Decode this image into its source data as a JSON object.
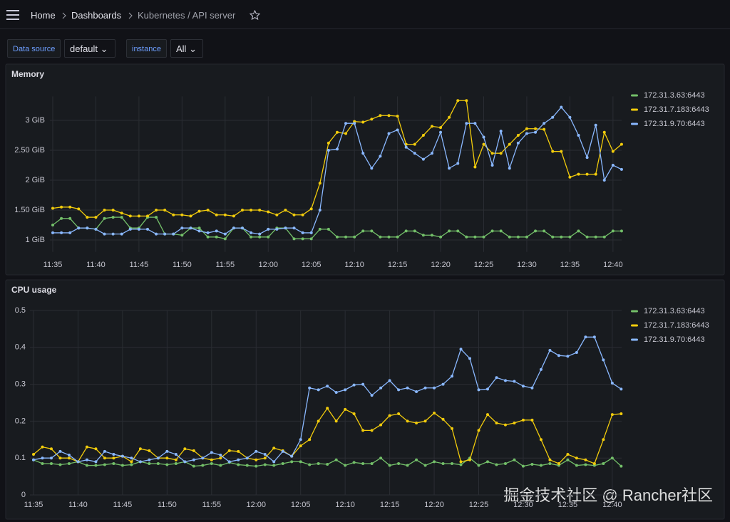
{
  "nav": [
    "Home",
    "Dashboards",
    "Kubernetes / API server"
  ],
  "variables": [
    {
      "label": "Data source",
      "value": "default"
    },
    {
      "label": "instance",
      "value": "All"
    }
  ],
  "watermark": "掘金技术社区 @ Rancher社区",
  "chart_data": [
    {
      "type": "line",
      "title": "Memory",
      "categories": [
        "11:35",
        null,
        null,
        null,
        null,
        "11:40",
        null,
        null,
        null,
        null,
        "11:45",
        null,
        null,
        null,
        null,
        "11:50",
        null,
        null,
        null,
        null,
        "11:55",
        null,
        null,
        null,
        null,
        "12:00",
        null,
        null,
        null,
        null,
        "12:05",
        null,
        null,
        null,
        null,
        "12:10",
        null,
        null,
        null,
        null,
        "12:15",
        null,
        null,
        null,
        null,
        "12:20",
        null,
        null,
        null,
        null,
        "12:25",
        null,
        null,
        null,
        null,
        "12:30",
        null,
        null,
        null,
        null,
        "12:35",
        null,
        null,
        null,
        null,
        "12:40",
        null
      ],
      "ylim": [
        0.8,
        3.4
      ],
      "yticks": [
        {
          "value": 1,
          "label": "1 GiB"
        },
        {
          "value": 1.5,
          "label": "1.50 GiB"
        },
        {
          "value": 2,
          "label": "2 GiB"
        },
        {
          "value": 2.5,
          "label": "2.50 GiB"
        },
        {
          "value": 3,
          "label": "3 GiB"
        }
      ],
      "grid": true,
      "series": [
        {
          "name": "172.31.3.63:6443",
          "color": "#73bf69",
          "values": [
            1.25,
            1.36,
            1.36,
            1.2,
            1.2,
            1.18,
            1.36,
            1.38,
            1.38,
            1.2,
            1.2,
            1.38,
            1.38,
            1.1,
            1.1,
            1.08,
            1.2,
            1.2,
            1.05,
            1.05,
            1.02,
            1.2,
            1.2,
            1.05,
            1.05,
            1.05,
            1.2,
            1.2,
            1.02,
            1.02,
            1.02,
            1.18,
            1.18,
            1.05,
            1.05,
            1.05,
            1.15,
            1.15,
            1.05,
            1.05,
            1.05,
            1.15,
            1.15,
            1.08,
            1.08,
            1.05,
            1.15,
            1.15,
            1.05,
            1.05,
            1.05,
            1.15,
            1.15,
            1.05,
            1.05,
            1.05,
            1.15,
            1.15,
            1.05,
            1.05,
            1.05,
            1.15,
            1.05,
            1.05,
            1.05,
            1.15,
            1.15
          ]
        },
        {
          "name": "172.31.7.183:6443",
          "color": "#f2cc0c",
          "values": [
            1.53,
            1.55,
            1.55,
            1.52,
            1.38,
            1.38,
            1.5,
            1.5,
            1.45,
            1.4,
            1.4,
            1.4,
            1.5,
            1.5,
            1.42,
            1.42,
            1.4,
            1.48,
            1.5,
            1.42,
            1.42,
            1.4,
            1.5,
            1.5,
            1.5,
            1.47,
            1.42,
            1.5,
            1.42,
            1.42,
            1.52,
            1.95,
            2.62,
            2.8,
            2.78,
            2.98,
            2.97,
            3.02,
            3.08,
            3.08,
            3.07,
            2.6,
            2.6,
            2.75,
            2.9,
            2.88,
            3.05,
            3.33,
            3.33,
            2.22,
            2.6,
            2.45,
            2.45,
            2.6,
            2.75,
            2.86,
            2.86,
            2.85,
            2.48,
            2.48,
            2.05,
            2.1,
            2.1,
            2.1,
            2.8,
            2.48,
            2.6
          ]
        },
        {
          "name": "172.31.9.70:6443",
          "color": "#8ab8ff",
          "values": [
            1.12,
            1.12,
            1.12,
            1.2,
            1.2,
            1.18,
            1.1,
            1.1,
            1.1,
            1.18,
            1.18,
            1.18,
            1.1,
            1.1,
            1.1,
            1.2,
            1.2,
            1.15,
            1.12,
            1.15,
            1.1,
            1.2,
            1.2,
            1.12,
            1.1,
            1.18,
            1.18,
            1.2,
            1.2,
            1.12,
            1.12,
            1.5,
            2.5,
            2.52,
            2.95,
            2.95,
            2.45,
            2.2,
            2.4,
            2.78,
            2.84,
            2.55,
            2.45,
            2.35,
            2.45,
            2.8,
            2.2,
            2.28,
            2.95,
            2.95,
            2.72,
            2.25,
            2.82,
            2.2,
            2.62,
            2.78,
            2.8,
            2.95,
            3.05,
            3.22,
            3.05,
            2.75,
            2.38,
            2.92,
            2.0,
            2.25,
            2.18
          ]
        }
      ]
    },
    {
      "type": "line",
      "title": "CPU usage",
      "categories": [
        "11:35",
        null,
        null,
        null,
        null,
        "11:40",
        null,
        null,
        null,
        null,
        "11:45",
        null,
        null,
        null,
        null,
        "11:50",
        null,
        null,
        null,
        null,
        "11:55",
        null,
        null,
        null,
        null,
        "12:00",
        null,
        null,
        null,
        null,
        "12:05",
        null,
        null,
        null,
        null,
        "12:10",
        null,
        null,
        null,
        null,
        "12:15",
        null,
        null,
        null,
        null,
        "12:20",
        null,
        null,
        null,
        null,
        "12:25",
        null,
        null,
        null,
        null,
        "12:30",
        null,
        null,
        null,
        null,
        "12:35",
        null,
        null,
        null,
        null,
        "12:40",
        null
      ],
      "ylim": [
        0,
        0.5
      ],
      "yticks": [
        0,
        0.1,
        0.2,
        0.3,
        0.4,
        0.5
      ],
      "grid": true,
      "series": [
        {
          "name": "172.31.3.63:6443",
          "color": "#73bf69",
          "values": [
            0.095,
            0.085,
            0.085,
            0.082,
            0.085,
            0.09,
            0.08,
            0.08,
            0.082,
            0.085,
            0.08,
            0.082,
            0.09,
            0.085,
            0.085,
            0.082,
            0.085,
            0.09,
            0.078,
            0.08,
            0.085,
            0.08,
            0.088,
            0.082,
            0.08,
            0.078,
            0.082,
            0.08,
            0.085,
            0.09,
            0.09,
            0.082,
            0.085,
            0.083,
            0.095,
            0.08,
            0.088,
            0.085,
            0.085,
            0.1,
            0.08,
            0.085,
            0.08,
            0.095,
            0.08,
            0.09,
            0.085,
            0.085,
            0.082,
            0.1,
            0.08,
            0.09,
            0.082,
            0.085,
            0.095,
            0.078,
            0.083,
            0.08,
            0.085,
            0.08,
            0.095,
            0.08,
            0.082,
            0.08,
            0.085,
            0.1,
            0.078
          ]
        },
        {
          "name": "172.31.7.183:6443",
          "color": "#f2cc0c",
          "values": [
            0.11,
            0.13,
            0.125,
            0.1,
            0.1,
            0.09,
            0.13,
            0.125,
            0.1,
            0.1,
            0.105,
            0.09,
            0.125,
            0.12,
            0.1,
            0.1,
            0.095,
            0.125,
            0.12,
            0.1,
            0.095,
            0.1,
            0.12,
            0.118,
            0.1,
            0.095,
            0.1,
            0.127,
            0.12,
            0.105,
            0.133,
            0.15,
            0.2,
            0.235,
            0.2,
            0.232,
            0.22,
            0.175,
            0.175,
            0.19,
            0.215,
            0.22,
            0.2,
            0.195,
            0.2,
            0.222,
            0.205,
            0.18,
            0.09,
            0.095,
            0.175,
            0.218,
            0.195,
            0.19,
            0.195,
            0.203,
            0.203,
            0.15,
            0.095,
            0.085,
            0.11,
            0.1,
            0.095,
            0.085,
            0.15,
            0.218,
            0.22
          ]
        },
        {
          "name": "172.31.9.70:6443",
          "color": "#8ab8ff",
          "values": [
            0.095,
            0.1,
            0.1,
            0.118,
            0.108,
            0.09,
            0.095,
            0.09,
            0.118,
            0.11,
            0.105,
            0.1,
            0.09,
            0.095,
            0.1,
            0.118,
            0.11,
            0.09,
            0.095,
            0.1,
            0.115,
            0.108,
            0.09,
            0.095,
            0.1,
            0.118,
            0.11,
            0.09,
            0.118,
            0.105,
            0.15,
            0.29,
            0.285,
            0.295,
            0.278,
            0.285,
            0.298,
            0.3,
            0.27,
            0.29,
            0.31,
            0.285,
            0.29,
            0.28,
            0.29,
            0.29,
            0.3,
            0.322,
            0.395,
            0.37,
            0.285,
            0.287,
            0.318,
            0.31,
            0.308,
            0.295,
            0.29,
            0.34,
            0.392,
            0.378,
            0.376,
            0.386,
            0.428,
            0.428,
            0.366,
            0.303,
            0.287
          ]
        }
      ]
    }
  ]
}
